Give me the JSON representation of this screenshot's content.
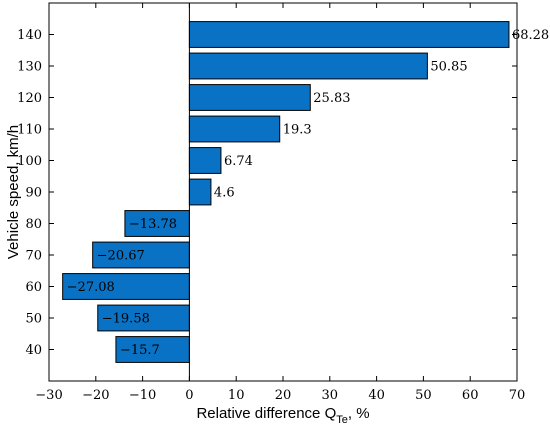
{
  "chart_data": {
    "type": "bar",
    "orientation": "horizontal",
    "title": "",
    "xlabel": "Relative difference Q",
    "xlabel_subscript": "Te",
    "xlabel_suffix": ", %",
    "ylabel": "Vehicle speed, km/h",
    "categories": [
      "40",
      "50",
      "60",
      "70",
      "80",
      "90",
      "100",
      "110",
      "120",
      "130",
      "140"
    ],
    "values": [
      -15.7,
      -19.58,
      -27.08,
      -20.67,
      -13.78,
      4.6,
      6.74,
      19.3,
      25.83,
      50.85,
      68.28
    ],
    "data_labels": [
      "−15.7",
      "−19.58",
      "−27.08",
      "−20.67",
      "−13.78",
      "4.6",
      "6.74",
      "19.3",
      "25.83",
      "50.85",
      "68.28"
    ],
    "xlim": [
      -30,
      70
    ],
    "xticks": [
      -30,
      -20,
      -10,
      0,
      10,
      20,
      30,
      40,
      50,
      60,
      70
    ],
    "xtick_labels": [
      "−30",
      "−20",
      "−10",
      "0",
      "10",
      "20",
      "30",
      "40",
      "50",
      "60",
      "70"
    ],
    "ylim": [
      30,
      150
    ],
    "grid": false,
    "legend": "none",
    "bar_color": "#0a72c4",
    "bar_edge_color": "#000000"
  }
}
